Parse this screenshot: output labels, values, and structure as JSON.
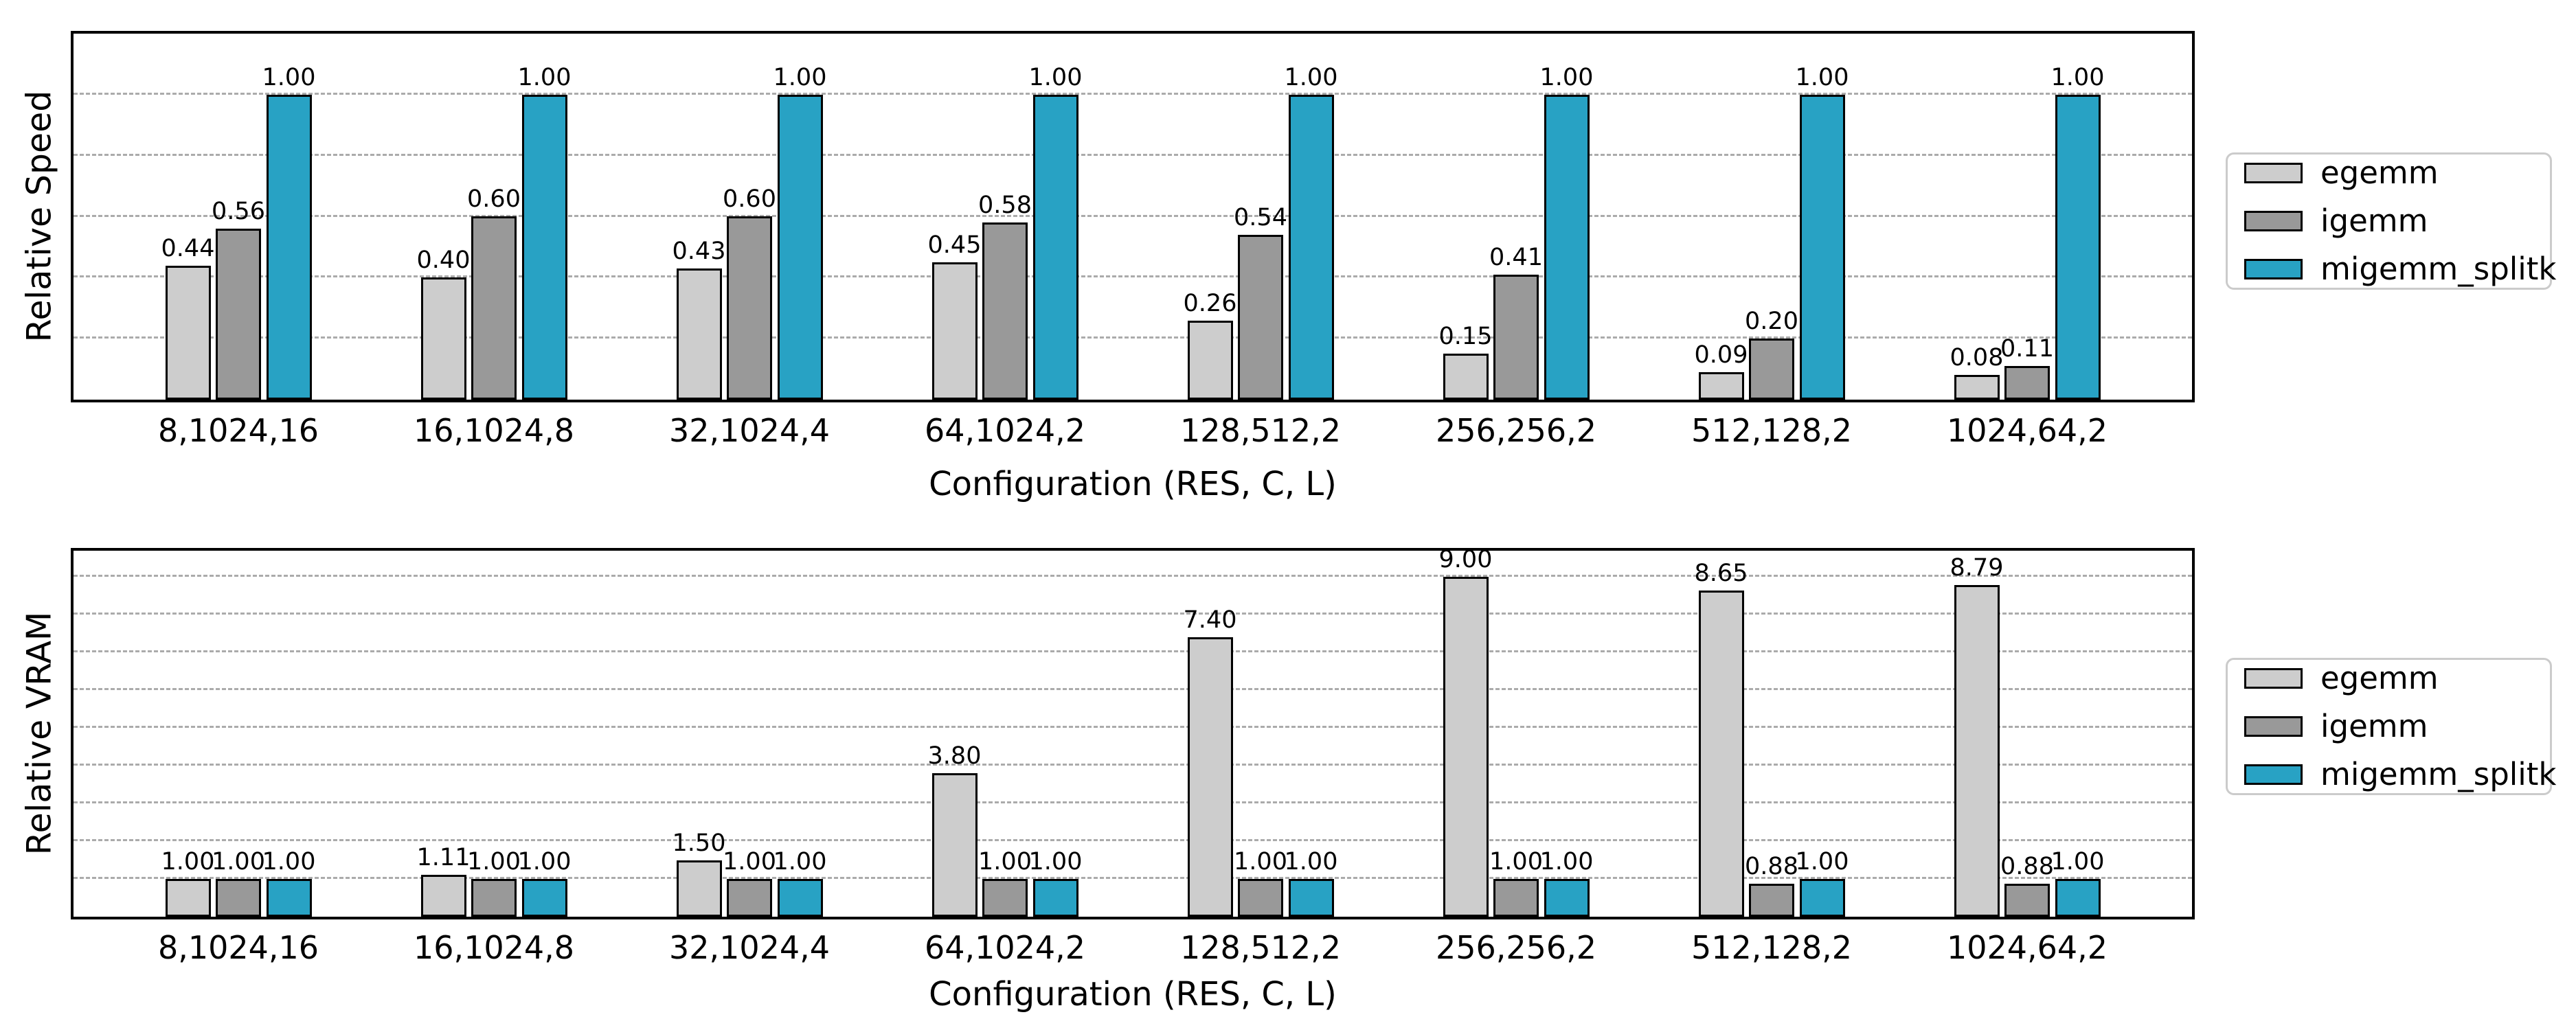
{
  "figure": {
    "background": "#ffffff",
    "grid_color": "#ababab",
    "edge_color": "#000000",
    "legend_border_color": "#cbcbcb"
  },
  "legend": {
    "items": [
      {
        "label": "egemm",
        "color": "#cdcdcd"
      },
      {
        "label": "igemm",
        "color": "#999999"
      },
      {
        "label": "migemm_splitk",
        "color": "#28a2c4"
      }
    ]
  },
  "chart_data": [
    {
      "type": "bar",
      "title": "",
      "ylabel": "Relative Speed",
      "xlabel": "Configuration (RES, C, L)",
      "categories": [
        "8,1024,16",
        "16,1024,8",
        "32,1024,4",
        "64,1024,2",
        "128,512,2",
        "256,256,2",
        "512,128,2",
        "1024,64,2"
      ],
      "series": [
        {
          "name": "egemm",
          "color": "#cdcdcd",
          "values": [
            0.44,
            0.4,
            0.43,
            0.45,
            0.26,
            0.15,
            0.09,
            0.08
          ],
          "labels": [
            "0.44",
            "0.40",
            "0.43",
            "0.45",
            "0.26",
            "0.15",
            "0.09",
            "0.08"
          ]
        },
        {
          "name": "igemm",
          "color": "#999999",
          "values": [
            0.56,
            0.6,
            0.6,
            0.58,
            0.54,
            0.41,
            0.2,
            0.11
          ],
          "labels": [
            "0.56",
            "0.60",
            "0.60",
            "0.58",
            "0.54",
            "0.41",
            "0.20",
            "0.11"
          ]
        },
        {
          "name": "migemm_splitk",
          "color": "#28a2c4",
          "values": [
            1.0,
            1.0,
            1.0,
            1.0,
            1.0,
            1.0,
            1.0,
            1.0
          ],
          "labels": [
            "1.00",
            "1.00",
            "1.00",
            "1.00",
            "1.00",
            "1.00",
            "1.00",
            "1.00"
          ]
        }
      ],
      "ylim": [
        0,
        1.2
      ],
      "gridlines": [
        0.2,
        0.4,
        0.6,
        0.8,
        1.0
      ],
      "grid": "dashed horizontal",
      "legend_position": "outside center right",
      "y_tick_labels_visible": false
    },
    {
      "type": "bar",
      "title": "",
      "ylabel": "Relative VRAM",
      "xlabel": "Configuration (RES, C, L)",
      "categories": [
        "8,1024,16",
        "16,1024,8",
        "32,1024,4",
        "64,1024,2",
        "128,512,2",
        "256,256,2",
        "512,128,2",
        "1024,64,2"
      ],
      "series": [
        {
          "name": "egemm",
          "color": "#cdcdcd",
          "values": [
            1.0,
            1.11,
            1.5,
            3.8,
            7.4,
            9.0,
            8.65,
            8.79
          ],
          "labels": [
            "1.00",
            "1.11",
            "1.50",
            "3.80",
            "7.40",
            "9.00",
            "8.65",
            "8.79"
          ]
        },
        {
          "name": "igemm",
          "color": "#999999",
          "values": [
            1.0,
            1.0,
            1.0,
            1.0,
            1.0,
            1.0,
            0.88,
            0.88
          ],
          "labels": [
            "1.00",
            "1.00",
            "1.00",
            "1.00",
            "1.00",
            "1.00",
            "0.88",
            "0.88"
          ]
        },
        {
          "name": "migemm_splitk",
          "color": "#28a2c4",
          "values": [
            1.0,
            1.0,
            1.0,
            1.0,
            1.0,
            1.0,
            1.0,
            1.0
          ],
          "labels": [
            "1.00",
            "1.00",
            "1.00",
            "1.00",
            "1.00",
            "1.00",
            "1.00",
            "1.00"
          ]
        }
      ],
      "ylim": [
        0,
        9.7
      ],
      "gridlines": [
        1,
        2,
        3,
        4,
        5,
        6,
        7,
        8,
        9
      ],
      "grid": "dashed horizontal",
      "legend_position": "outside center right",
      "y_tick_labels_visible": false
    }
  ]
}
